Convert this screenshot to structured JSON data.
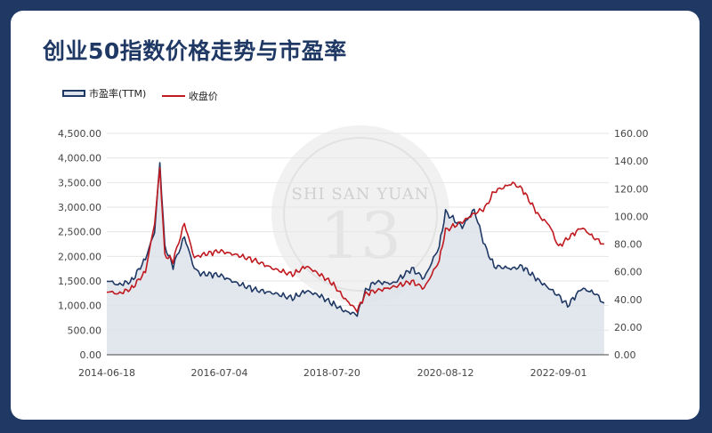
{
  "title": "创业50指数价格走势与市盈率",
  "legend": {
    "pe_label": "市盈率(TTM)",
    "price_label": "收盘价"
  },
  "watermark": {
    "text": "SHI SAN YUAN",
    "glyph": "13"
  },
  "colors": {
    "background": "#1f3864",
    "pe": "#1f3864",
    "pe_fill": "#dde3ea",
    "price": "#c0191f"
  },
  "chart_data": {
    "type": "line",
    "x_ticks": [
      "2014-06-18",
      "2016-07-04",
      "2018-07-20",
      "2020-08-12",
      "2022-09-01"
    ],
    "y_left": {
      "range": [
        0,
        4500
      ],
      "ticks": [
        "0.00",
        "500.00",
        "1,000.00",
        "1,500.00",
        "2,000.00",
        "2,500.00",
        "3,000.00",
        "3,500.00",
        "4,000.00",
        "4,500.00"
      ]
    },
    "y_right": {
      "range": [
        0,
        160
      ],
      "ticks": [
        "0.00",
        "20.00",
        "40.00",
        "60.00",
        "80.00",
        "100.00",
        "120.00",
        "140.00",
        "160.00"
      ]
    },
    "x": [
      "2014-06-18",
      "2014-09-01",
      "2014-12-01",
      "2015-03-01",
      "2015-05-01",
      "2015-06-05",
      "2015-07-08",
      "2015-09-01",
      "2015-11-15",
      "2016-01-20",
      "2016-03-01",
      "2016-07-04",
      "2016-11-01",
      "2017-03-01",
      "2017-07-01",
      "2017-11-01",
      "2018-02-01",
      "2018-05-01",
      "2018-07-20",
      "2018-10-18",
      "2019-01-04",
      "2019-03-01",
      "2019-05-01",
      "2019-09-01",
      "2020-01-01",
      "2020-03-23",
      "2020-07-01",
      "2020-08-12",
      "2020-12-01",
      "2021-02-18",
      "2021-05-01",
      "2021-07-01",
      "2021-11-01",
      "2022-01-01",
      "2022-04-26",
      "2022-07-01",
      "2022-09-01",
      "2022-10-31",
      "2023-02-01",
      "2023-05-01",
      "2023-07-01"
    ],
    "series": [
      {
        "name": "市盈率(TTM)",
        "axis": "left",
        "type": "area",
        "values": [
          1520,
          1420,
          1500,
          1950,
          2500,
          3900,
          2200,
          1800,
          2400,
          1750,
          1650,
          1620,
          1450,
          1320,
          1250,
          1150,
          1300,
          1200,
          1050,
          880,
          820,
          1300,
          1480,
          1450,
          1750,
          1550,
          2200,
          2900,
          2600,
          2950,
          2200,
          1800,
          1750,
          1800,
          1500,
          1350,
          1200,
          1000,
          1350,
          1250,
          1050
        ]
      },
      {
        "name": "收盘价",
        "axis": "right",
        "type": "line",
        "values": [
          46,
          44,
          48,
          60,
          95,
          135,
          72,
          68,
          95,
          70,
          72,
          75,
          72,
          68,
          62,
          58,
          64,
          58,
          52,
          40,
          32,
          44,
          46,
          49,
          53,
          48,
          68,
          90,
          96,
          102,
          106,
          118,
          124,
          120,
          100,
          94,
          78,
          84,
          92,
          84,
          80
        ]
      }
    ]
  }
}
